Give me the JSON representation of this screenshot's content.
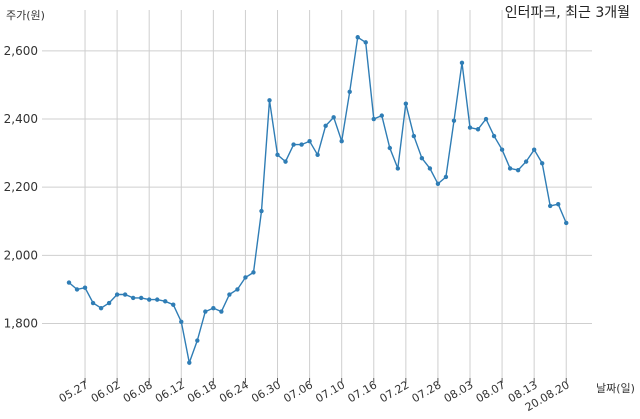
{
  "chart_data": {
    "type": "line",
    "title": "인터파크, 최근 3개월",
    "ylabel": "주가(원)",
    "xlabel": "날짜(일)",
    "ylim": [
      1640,
      2720
    ],
    "yticks": [
      1800,
      2000,
      2200,
      2400,
      2600
    ],
    "ytick_labels": [
      "1,800",
      "2,000",
      "2,200",
      "2,400",
      "2,600"
    ],
    "xtick_labels": [
      "05.27",
      "06.02",
      "06.08",
      "06.12",
      "06.18",
      "06.24",
      "06.30",
      "07.06",
      "07.10",
      "07.16",
      "07.22",
      "07.28",
      "08.03",
      "08.07",
      "08.13",
      "20.08.20"
    ],
    "xtick_index": [
      2,
      6,
      10,
      14,
      18,
      22,
      26,
      30,
      34,
      38,
      42,
      46,
      50,
      54,
      58,
      62
    ],
    "grid": true,
    "color": "#2f7db5",
    "series": [
      {
        "values": [
          1920,
          1900,
          1905,
          1860,
          1845,
          1860,
          1885,
          1885,
          1875,
          1875,
          1870,
          1870,
          1865,
          1855,
          1805,
          1685,
          1750,
          1835,
          1845,
          1835,
          1885,
          1900,
          1935,
          1950,
          2130,
          2455,
          2295,
          2275,
          2325,
          2325,
          2335,
          2295,
          2380,
          2405,
          2335,
          2480,
          2640,
          2625,
          2400,
          2410,
          2315,
          2255,
          2445,
          2350,
          2285,
          2255,
          2210,
          2230,
          2395,
          2565,
          2375,
          2370,
          2400,
          2350,
          2310,
          2255,
          2250,
          2275,
          2310,
          2270,
          2145,
          2150,
          2095
        ]
      }
    ]
  }
}
